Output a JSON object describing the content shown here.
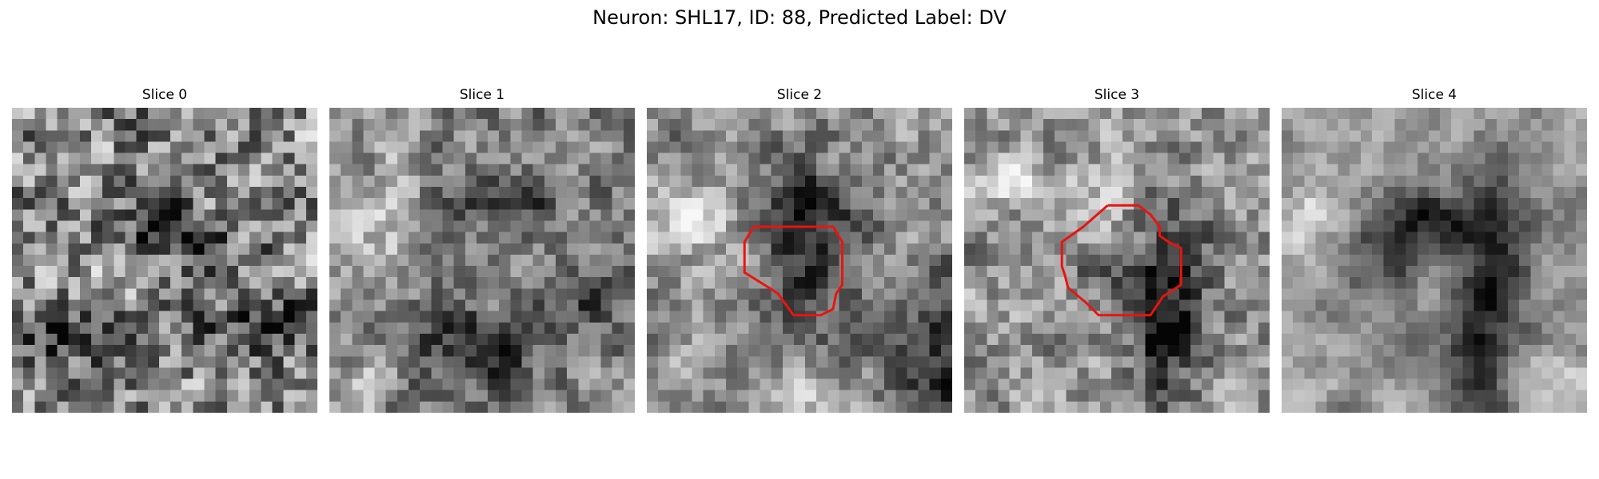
{
  "figure": {
    "title": "Neuron: SHL17, ID: 88, Predicted Label: DV"
  },
  "colors": {
    "roi_outline": "#e8140f",
    "background": "#ffffff"
  },
  "grid_size": 27,
  "slices": [
    {
      "title": "Slice 0",
      "seed": 11,
      "mean": 0.5,
      "noise": 0.48,
      "smooth": 0.35,
      "dark_spots": [
        [
          0.55,
          0.42,
          0.18,
          0.1
        ],
        [
          0.2,
          0.75,
          0.2,
          0.08
        ],
        [
          0.8,
          0.7,
          0.15,
          0.08
        ]
      ],
      "bright_spots": [
        [
          0.35,
          0.55,
          0.12,
          0.1
        ],
        [
          0.72,
          0.3,
          0.1,
          0.06
        ]
      ],
      "roi": []
    },
    {
      "title": "Slice 1",
      "seed": 23,
      "mean": 0.52,
      "noise": 0.4,
      "smooth": 0.55,
      "dark_spots": [
        [
          0.45,
          0.78,
          0.25,
          0.16
        ],
        [
          0.55,
          0.3,
          0.22,
          0.1
        ],
        [
          0.88,
          0.62,
          0.16,
          0.1
        ]
      ],
      "bright_spots": [
        [
          0.18,
          0.4,
          0.14,
          0.22
        ],
        [
          0.12,
          0.9,
          0.12,
          0.1
        ]
      ],
      "roi": []
    },
    {
      "title": "Slice 2",
      "seed": 37,
      "mean": 0.58,
      "noise": 0.38,
      "smooth": 0.55,
      "dark_spots": [
        [
          0.54,
          0.52,
          0.17,
          0.36
        ],
        [
          0.5,
          0.32,
          0.2,
          0.1
        ],
        [
          0.96,
          0.72,
          0.1,
          0.2
        ],
        [
          0.93,
          0.95,
          0.14,
          0.22
        ]
      ],
      "bright_spots": [
        [
          0.2,
          0.35,
          0.2,
          0.1
        ],
        [
          0.5,
          0.9,
          0.14,
          0.08
        ]
      ],
      "roi": [
        [
          0.35,
          0.39
        ],
        [
          0.4,
          0.39
        ],
        [
          0.61,
          0.39
        ],
        [
          0.64,
          0.44
        ],
        [
          0.64,
          0.58
        ],
        [
          0.62,
          0.61
        ],
        [
          0.61,
          0.66
        ],
        [
          0.57,
          0.68
        ],
        [
          0.48,
          0.68
        ],
        [
          0.43,
          0.61
        ],
        [
          0.4,
          0.59
        ],
        [
          0.32,
          0.54
        ],
        [
          0.32,
          0.44
        ],
        [
          0.35,
          0.39
        ]
      ],
      "roi_alt": []
    },
    {
      "title": "Slice 3",
      "seed": 53,
      "mean": 0.58,
      "noise": 0.38,
      "smooth": 0.5,
      "dark_spots": [
        [
          0.68,
          0.55,
          0.12,
          0.32
        ],
        [
          0.64,
          0.75,
          0.1,
          0.22
        ],
        [
          0.45,
          0.5,
          0.14,
          0.12
        ]
      ],
      "bright_spots": [
        [
          0.43,
          0.42,
          0.15,
          0.14
        ],
        [
          0.2,
          0.25,
          0.15,
          0.08
        ]
      ],
      "roi": [
        [
          0.47,
          0.32
        ],
        [
          0.57,
          0.32
        ],
        [
          0.61,
          0.35
        ],
        [
          0.64,
          0.39
        ],
        [
          0.64,
          0.42
        ],
        [
          0.67,
          0.44
        ],
        [
          0.71,
          0.46
        ],
        [
          0.71,
          0.58
        ],
        [
          0.65,
          0.62
        ],
        [
          0.61,
          0.68
        ],
        [
          0.56,
          0.68
        ],
        [
          0.44,
          0.68
        ],
        [
          0.4,
          0.64
        ],
        [
          0.34,
          0.59
        ],
        [
          0.33,
          0.55
        ],
        [
          0.32,
          0.52
        ],
        [
          0.32,
          0.44
        ],
        [
          0.39,
          0.39
        ],
        [
          0.47,
          0.32
        ]
      ]
    },
    {
      "title": "Slice 4",
      "seed": 71,
      "mean": 0.6,
      "noise": 0.32,
      "smooth": 0.7,
      "dark_spots": [
        [
          0.72,
          0.5,
          0.12,
          0.36
        ],
        [
          0.62,
          0.82,
          0.12,
          0.3
        ],
        [
          0.35,
          0.5,
          0.22,
          0.16
        ],
        [
          0.48,
          0.38,
          0.22,
          0.12
        ]
      ],
      "bright_spots": [
        [
          0.1,
          0.4,
          0.14,
          0.16
        ],
        [
          0.48,
          0.55,
          0.12,
          0.1
        ],
        [
          0.9,
          0.9,
          0.12,
          0.1
        ]
      ],
      "roi": []
    }
  ]
}
